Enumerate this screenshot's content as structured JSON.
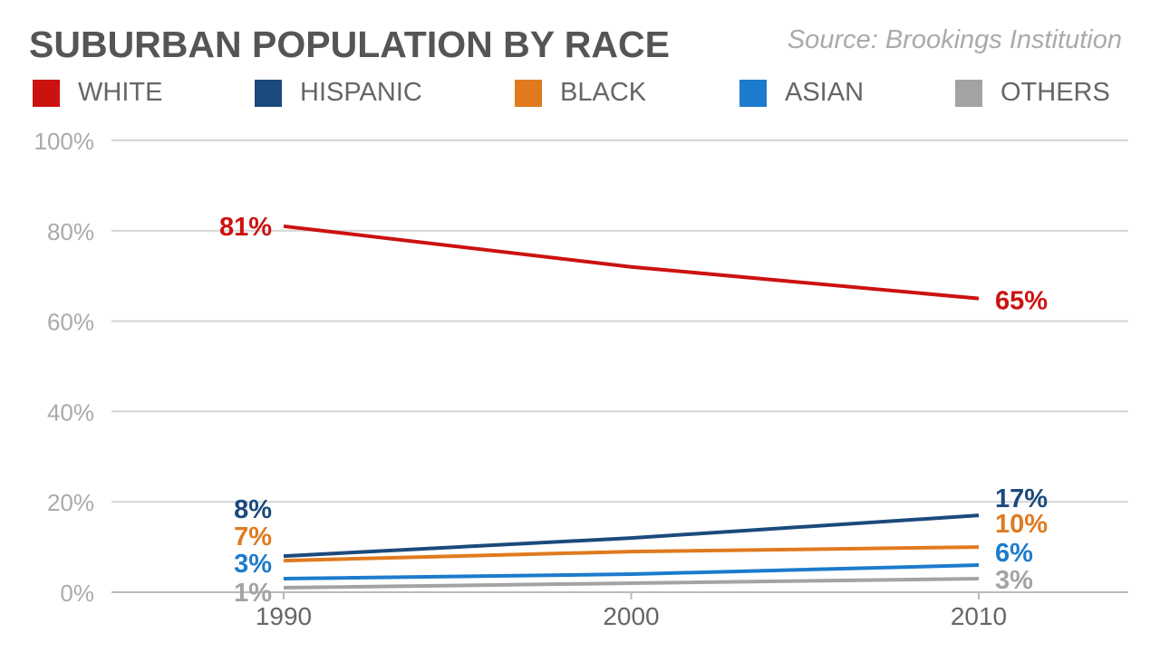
{
  "title": "SUBURBAN POPULATION BY RACE",
  "source": "Source: Brookings Institution",
  "chart_data": {
    "type": "line",
    "title": "SUBURBAN POPULATION BY RACE",
    "x": [
      1990,
      2000,
      2010
    ],
    "x_tick_labels": [
      "1990",
      "2000",
      "2010"
    ],
    "y_tick_labels": [
      "0%",
      "20%",
      "40%",
      "60%",
      "80%",
      "100%"
    ],
    "ylim": [
      0,
      100
    ],
    "grid": true,
    "legend_position": "top",
    "series": [
      {
        "name": "WHITE",
        "color": "#cc1111",
        "values": [
          81,
          72,
          65
        ],
        "start_label": "81%",
        "end_label": "65%"
      },
      {
        "name": "HISPANIC",
        "color": "#1b4a7c",
        "values": [
          8,
          12,
          17
        ],
        "start_label": "8%",
        "end_label": "17%"
      },
      {
        "name": "BLACK",
        "color": "#e07a1f",
        "values": [
          7,
          9,
          10
        ],
        "start_label": "7%",
        "end_label": "10%"
      },
      {
        "name": "ASIAN",
        "color": "#1c7bcc",
        "values": [
          3,
          4,
          6
        ],
        "start_label": "3%",
        "end_label": "6%"
      },
      {
        "name": "OTHERS",
        "color": "#a3a3a3",
        "values": [
          1,
          2,
          3
        ],
        "start_label": "1%",
        "end_label": "3%"
      }
    ]
  }
}
